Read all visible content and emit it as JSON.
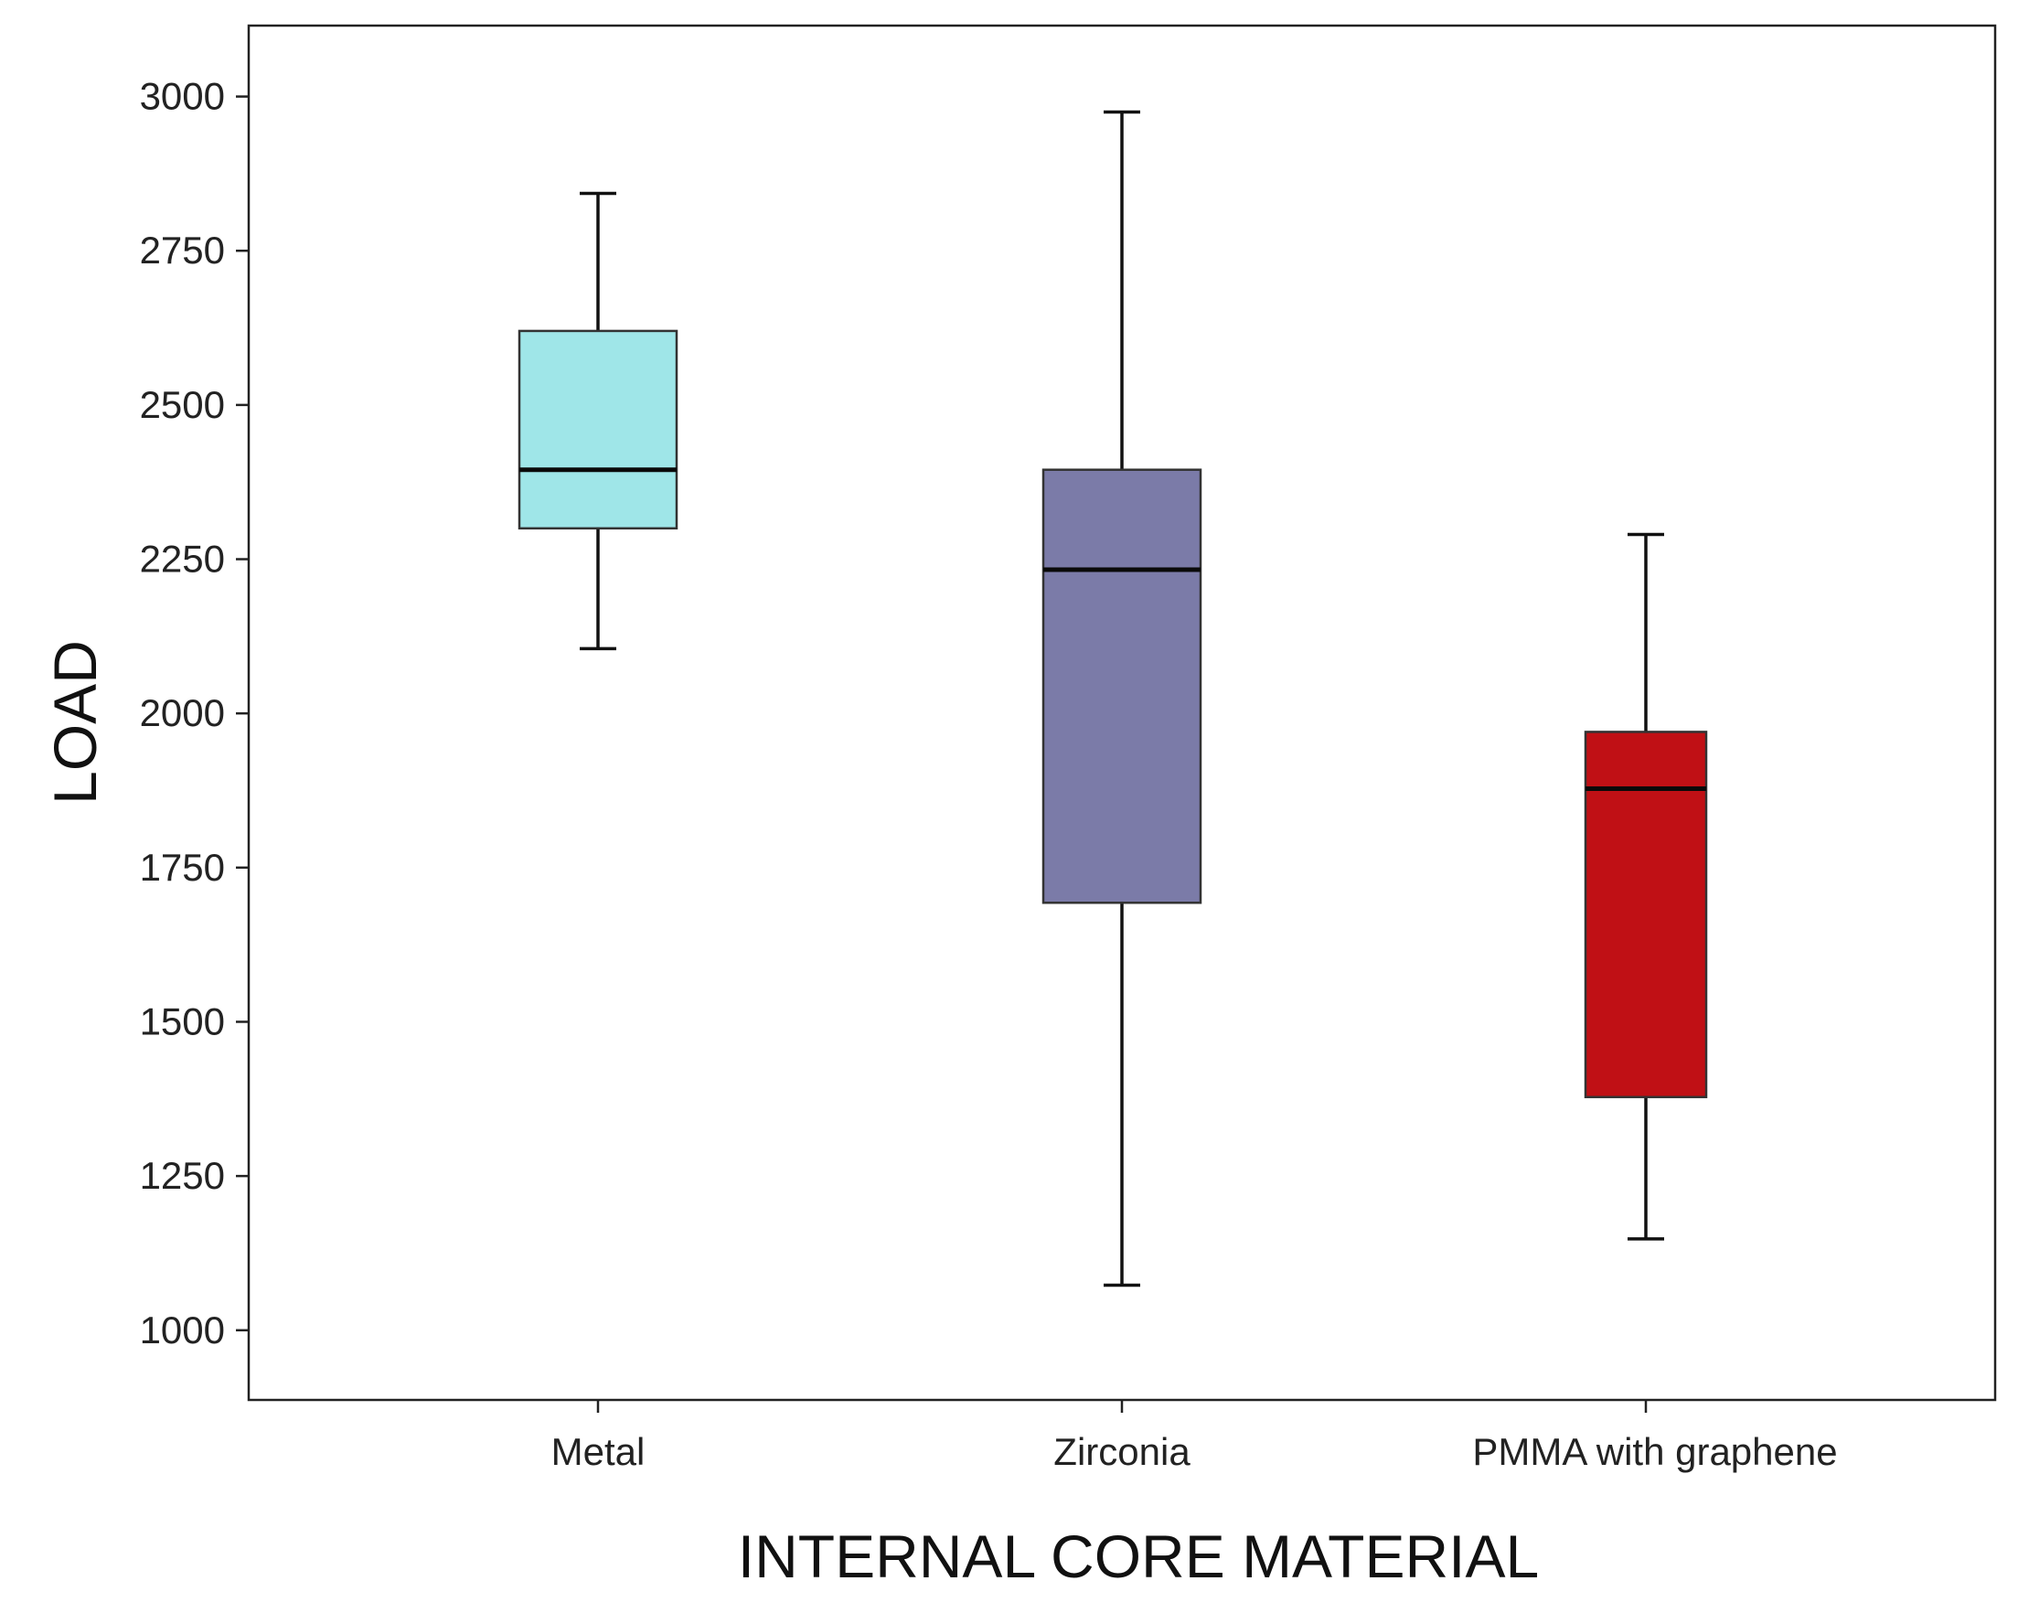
{
  "chart_data": {
    "type": "boxplot",
    "title": "",
    "xlabel": "INTERNAL CORE MATERIAL",
    "ylabel": "LOAD",
    "ylim": [
      887,
      3115
    ],
    "yticks": [
      1000,
      1250,
      1500,
      1750,
      2000,
      2250,
      2500,
      2750,
      3000
    ],
    "ytick_labels": [
      "1000",
      "1250",
      "1500",
      "1750",
      "2000",
      "2250",
      "2500",
      "2750",
      "3000"
    ],
    "grid": false,
    "legend": "none",
    "categories": [
      "Metal",
      "Zirconia",
      "PMMA with graphene"
    ],
    "series": [
      {
        "name": "Metal",
        "min": 2105,
        "q1": 2300,
        "median": 2395,
        "q3": 2620,
        "max": 2843,
        "color": "#9fe6e8"
      },
      {
        "name": "Zirconia",
        "min": 1073,
        "q1": 1693,
        "median": 2233,
        "q3": 2395,
        "max": 2975,
        "color": "#7b7ba8"
      },
      {
        "name": "PMMA with graphene",
        "min": 1148,
        "q1": 1378,
        "median": 1878,
        "q3": 1970,
        "max": 2290,
        "color": "#c01015"
      }
    ]
  }
}
